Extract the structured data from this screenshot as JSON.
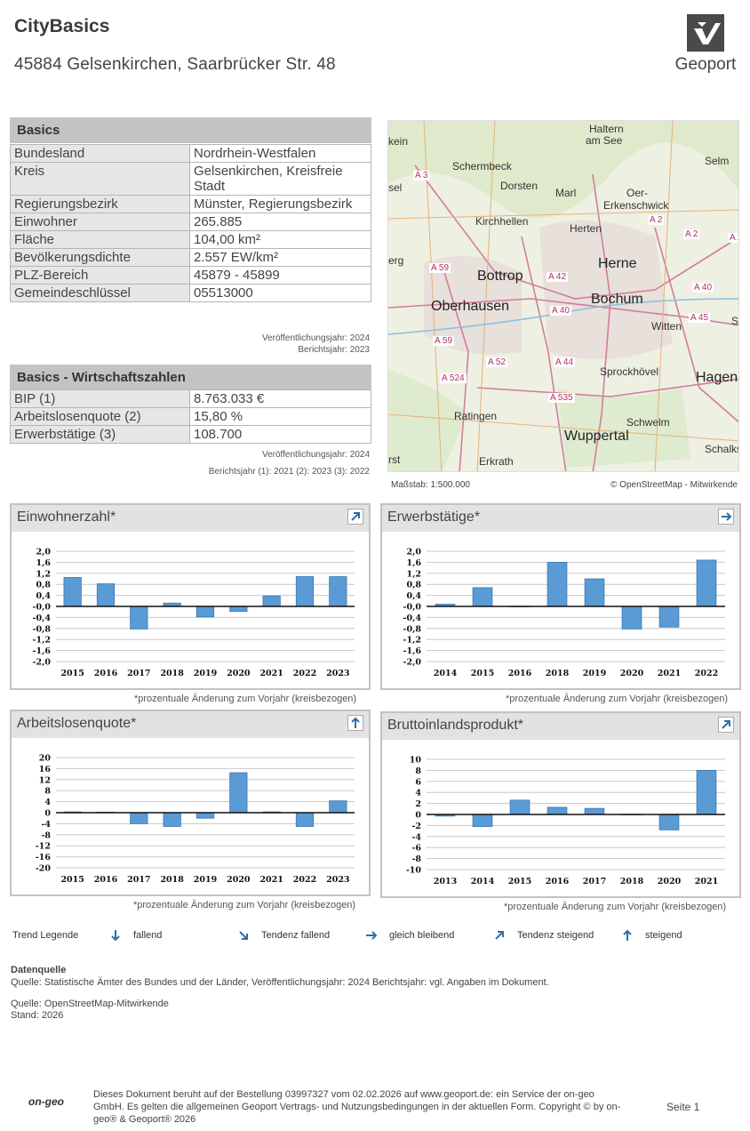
{
  "header": {
    "title": "CityBasics",
    "address": "45884 Gelsenkirchen, Saarbrücker Str. 48",
    "brand": "Geoport"
  },
  "basics": {
    "heading": "Basics",
    "rows": [
      {
        "k": "Bundesland",
        "v": "Nordrhein-Westfalen"
      },
      {
        "k": "Kreis",
        "v": "Gelsenkirchen, Kreisfreie Stadt"
      },
      {
        "k": "Regierungsbezirk",
        "v": "Münster, Regierungsbezirk"
      },
      {
        "k": "Einwohner",
        "v": "265.885"
      },
      {
        "k": "Fläche",
        "v": "104,00 km²"
      },
      {
        "k": "Bevölkerungsdichte",
        "v": "2.557 EW/km²"
      },
      {
        "k": "PLZ-Bereich",
        "v": "45879 - 45899"
      },
      {
        "k": "Gemeindeschlüssel",
        "v": "05513000"
      }
    ],
    "pub_year": "Veröffentlichungsjahr: 2024",
    "report_year": "Berichtsjahr: 2023"
  },
  "economy": {
    "heading": "Basics - Wirtschaftszahlen",
    "rows": [
      {
        "k": "BIP (1)",
        "v": "8.763.033 €"
      },
      {
        "k": "Arbeitslosenquote (2)",
        "v": "15,80 %"
      },
      {
        "k": "Erwerbstätige (3)",
        "v": "108.700"
      }
    ],
    "pub_year": "Veröffentlichungsjahr: 2024",
    "report_year": "Berichtsjahr (1): 2021 (2): 2023 (3): 2022"
  },
  "map": {
    "scale": "Maßstab: 1:500.000",
    "attribution": "© OpenStreetMap - Mitwirkende",
    "labels": [
      {
        "t": "Haltern",
        "c": "n"
      },
      {
        "t": "am See",
        "c": "n"
      },
      {
        "t": "Selm",
        "c": "n"
      },
      {
        "t": "Schermbeck",
        "c": "n"
      },
      {
        "t": "Dorsten",
        "c": "n"
      },
      {
        "t": "Marl",
        "c": "n"
      },
      {
        "t": "Oer-",
        "c": "n"
      },
      {
        "t": "Erkenschwick",
        "c": "n"
      },
      {
        "t": "Kirchhellen",
        "c": "n"
      },
      {
        "t": "Herten",
        "c": "n"
      },
      {
        "t": "Herne",
        "c": "b"
      },
      {
        "t": "Bottrop",
        "c": "b"
      },
      {
        "t": "Oberhausen",
        "c": "b"
      },
      {
        "t": "Bochum",
        "c": "b"
      },
      {
        "t": "Witten",
        "c": "n"
      },
      {
        "t": "Sprockhövel",
        "c": "n"
      },
      {
        "t": "Hagen",
        "c": "b"
      },
      {
        "t": "Ratingen",
        "c": "n"
      },
      {
        "t": "Schwelm",
        "c": "n"
      },
      {
        "t": "Wuppertal",
        "c": "b"
      },
      {
        "t": "Schalks",
        "c": "n"
      },
      {
        "t": "Erkrath",
        "c": "n"
      },
      {
        "t": "kein",
        "c": "n"
      },
      {
        "t": "sel",
        "c": "n"
      },
      {
        "t": "erg",
        "c": "n"
      },
      {
        "t": "rst",
        "c": "n"
      },
      {
        "t": "Sc",
        "c": "n"
      },
      {
        "t": "A 3",
        "c": "r"
      },
      {
        "t": "A 2",
        "c": "r"
      },
      {
        "t": "A 2",
        "c": "r"
      },
      {
        "t": "A 2",
        "c": "r"
      },
      {
        "t": "A 59",
        "c": "r"
      },
      {
        "t": "A 42",
        "c": "r"
      },
      {
        "t": "A 40",
        "c": "r"
      },
      {
        "t": "A 40",
        "c": "r"
      },
      {
        "t": "A 45",
        "c": "r"
      },
      {
        "t": "A 59",
        "c": "r"
      },
      {
        "t": "A 52",
        "c": "r"
      },
      {
        "t": "A 44",
        "c": "r"
      },
      {
        "t": "A 524",
        "c": "r"
      },
      {
        "t": "A 535",
        "c": "r"
      }
    ]
  },
  "charts": [
    {
      "title": "Einwohnerzahl*",
      "trend": "steigend-tendenz",
      "note": "*prozentuale Änderung zum Vorjahr (kreisbezogen)",
      "chart_data": {
        "type": "bar",
        "categories": [
          "2015",
          "2016",
          "2017",
          "2018",
          "2019",
          "2020",
          "2021",
          "2022",
          "2023"
        ],
        "values": [
          1.05,
          0.82,
          -0.82,
          0.12,
          -0.38,
          -0.18,
          0.38,
          1.08,
          1.08
        ],
        "ylim": [
          -2,
          2
        ],
        "ticks": [
          "2,0",
          "1,6",
          "1,2",
          "0,8",
          "0,4",
          "-0,0",
          "-0,4",
          "-0,8",
          "-1,2",
          "-1,6",
          "-2,0"
        ]
      }
    },
    {
      "title": "Erwerbstätige*",
      "trend": "gleich",
      "note": "*prozentuale Änderung zum Vorjahr (kreisbezogen)",
      "chart_data": {
        "type": "bar",
        "categories": [
          "2014",
          "2015",
          "2016",
          "2018",
          "2019",
          "2020",
          "2021",
          "2022"
        ],
        "values": [
          0.08,
          0.68,
          0.0,
          1.6,
          1.0,
          -0.82,
          -0.75,
          1.68
        ],
        "ylim": [
          -2,
          2
        ],
        "ticks": [
          "2,0",
          "1,6",
          "1,2",
          "0,8",
          "0,4",
          "-0,0",
          "-0,4",
          "-0,8",
          "-1,2",
          "-1,6",
          "-2,0"
        ]
      }
    },
    {
      "title": "Arbeitslosenquote*",
      "trend": "steigend",
      "note": "*prozentuale Änderung zum Vorjahr (kreisbezogen)",
      "chart_data": {
        "type": "bar",
        "categories": [
          "2015",
          "2016",
          "2017",
          "2018",
          "2019",
          "2020",
          "2021",
          "2022",
          "2023"
        ],
        "values": [
          0.3,
          0.2,
          -4.0,
          -5.0,
          -2.0,
          14.5,
          0.3,
          -5.0,
          4.3
        ],
        "ylim": [
          -20,
          20
        ],
        "ticks": [
          "20",
          "16",
          "12",
          "8",
          "4",
          "0",
          "-4",
          "-8",
          "-12",
          "-16",
          "-20"
        ]
      }
    },
    {
      "title": "Bruttoinlandsprodukt*",
      "trend": "steigend-tendenz",
      "note": "*prozentuale Änderung zum Vorjahr (kreisbezogen)",
      "chart_data": {
        "type": "bar",
        "categories": [
          "2013",
          "2014",
          "2015",
          "2016",
          "2017",
          "2018",
          "2020",
          "2021"
        ],
        "values": [
          -0.3,
          -2.2,
          2.6,
          1.3,
          1.1,
          0.0,
          -2.8,
          8.0
        ],
        "ylim": [
          -10,
          10
        ],
        "ticks": [
          "10",
          "8",
          "6",
          "4",
          "2",
          "0",
          "-2",
          "-4",
          "-6",
          "-8",
          "-10"
        ]
      }
    }
  ],
  "legend": {
    "title": "Trend Legende",
    "items": [
      "fallend",
      "Tendenz fallend",
      "gleich bleibend",
      "Tendenz steigend",
      "steigend"
    ]
  },
  "sources": {
    "heading": "Datenquelle",
    "line1": "Quelle: Statistische Ämter des Bundes und der Länder, Veröffentlichungsjahr: 2024 Berichtsjahr: vgl. Angaben im Dokument.",
    "line2": "Quelle: OpenStreetMap-Mitwirkende",
    "line3": "Stand: 2026"
  },
  "footer": {
    "logo": "on-geo",
    "text": "Dieses Dokument beruht auf der Bestellung 03997327 vom 02.02.2026 auf www.geoport.de: ein Service der on-geo GmbH. Es gelten die allgemeinen Geoport Vertrags- und Nutzungsbedingungen in der aktuellen Form. Copyright © by on-geo® & Geoport® 2026",
    "page": "Seite 1"
  },
  "colors": {
    "bar": "#5b9bd5",
    "bar_stroke": "#3a78b0",
    "arrow": "#2f6ea8",
    "header_gray": "#c3c3c3"
  }
}
